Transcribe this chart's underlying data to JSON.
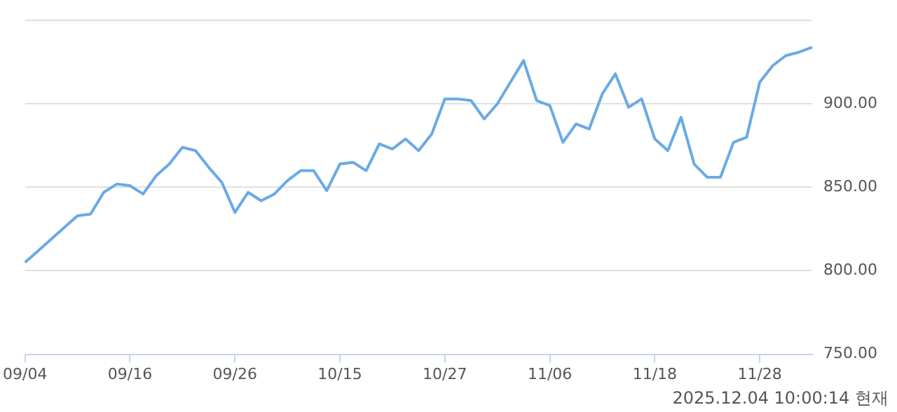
{
  "chart_data": {
    "type": "line",
    "categories": [
      "09/04",
      null,
      null,
      null,
      null,
      null,
      null,
      null,
      "09/16",
      null,
      null,
      null,
      null,
      null,
      null,
      null,
      "09/26",
      null,
      null,
      null,
      null,
      null,
      null,
      null,
      "10/15",
      null,
      null,
      null,
      null,
      null,
      null,
      null,
      "10/27",
      null,
      null,
      null,
      null,
      null,
      null,
      null,
      "11/06",
      null,
      null,
      null,
      null,
      null,
      null,
      null,
      "11/18",
      null,
      null,
      null,
      null,
      null,
      null,
      null,
      "11/28",
      null,
      null,
      null,
      null
    ],
    "series": [
      {
        "color": "#6aaae4",
        "values": [
          805,
          812,
          819,
          826,
          833,
          834,
          847,
          852,
          851,
          846,
          857,
          864,
          874,
          872,
          862,
          853,
          835,
          847,
          842,
          846,
          854,
          860,
          860,
          848,
          864,
          865,
          860,
          876,
          873,
          879,
          872,
          882,
          903,
          903,
          902,
          891,
          900,
          913,
          926,
          902,
          899,
          877,
          888,
          885,
          906,
          918,
          898,
          903,
          879,
          872,
          892,
          864,
          856,
          856,
          877,
          880,
          913,
          923,
          929,
          931,
          934
        ]
      }
    ],
    "ylim": [
      750,
      950
    ],
    "yticks": [
      {
        "value": 750,
        "label": "750.00"
      },
      {
        "value": 800,
        "label": "800.00"
      },
      {
        "value": 850,
        "label": "850.00"
      },
      {
        "value": 900,
        "label": "900.00"
      },
      {
        "value": 950,
        "label": null
      }
    ],
    "grid": "y",
    "legend": false,
    "marker": "none",
    "line_style": "solid",
    "annotations": [
      "2025.12.04 10:00:14 현재"
    ]
  }
}
